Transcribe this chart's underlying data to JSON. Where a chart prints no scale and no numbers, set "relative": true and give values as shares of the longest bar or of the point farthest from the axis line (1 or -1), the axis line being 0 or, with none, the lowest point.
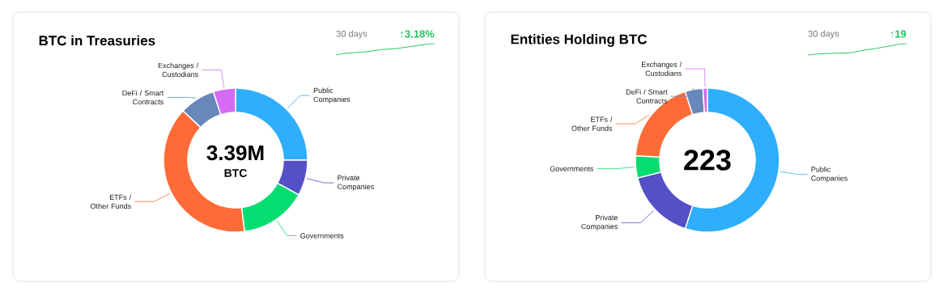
{
  "chart_data": [
    {
      "type": "donut",
      "title": "BTC in Treasuries",
      "annotations": [
        "3.39M",
        "BTC"
      ],
      "categories": [
        "Public Companies",
        "Private Companies",
        "Governments",
        "ETFs / Other Funds",
        "DeFi / Smart Contracts",
        "Exchanges / Custodians"
      ],
      "values": [
        25,
        8,
        15,
        39,
        8,
        5
      ],
      "colors": [
        "#2eaefc",
        "#5450c6",
        "#06dd70",
        "#fe6b36",
        "#6887ba",
        "#d66bf6"
      ]
    },
    {
      "type": "line",
      "relative": true,
      "annotations": [
        "30 days",
        "↑3.18%"
      ],
      "color": "#21c45d",
      "categories": [
        null,
        null,
        null,
        null,
        null,
        null,
        null,
        null,
        null,
        null,
        null,
        null,
        null,
        null
      ],
      "values": [
        0,
        0.12,
        0.19,
        0.24,
        0.29,
        0.38,
        0.48,
        0.52,
        0.57,
        0.67,
        0.76,
        0.86,
        0.95,
        1
      ]
    },
    {
      "type": "donut",
      "title": "Entities Holding BTC",
      "annotations": [
        "223"
      ],
      "categories": [
        "Public Companies",
        "Private Companies",
        "Governments",
        "ETFs / Other Funds",
        "DeFi / Smart Contracts",
        "Exchanges / Custodians"
      ],
      "values": [
        55,
        16,
        5,
        19,
        4,
        1
      ],
      "colors": [
        "#2eaefc",
        "#5450c6",
        "#06dd70",
        "#fe6b36",
        "#6887ba",
        "#d66bf6"
      ]
    },
    {
      "type": "line",
      "relative": true,
      "annotations": [
        "30 days",
        "↑19"
      ],
      "color": "#21c45d",
      "categories": [
        null,
        null,
        null,
        null,
        null,
        null,
        null,
        null,
        null,
        null,
        null,
        null,
        null,
        null
      ],
      "values": [
        0,
        0.07,
        0.12,
        0.14,
        0.17,
        0.17,
        0.24,
        0.38,
        0.48,
        0.57,
        0.71,
        0.81,
        0.95,
        1
      ]
    }
  ]
}
